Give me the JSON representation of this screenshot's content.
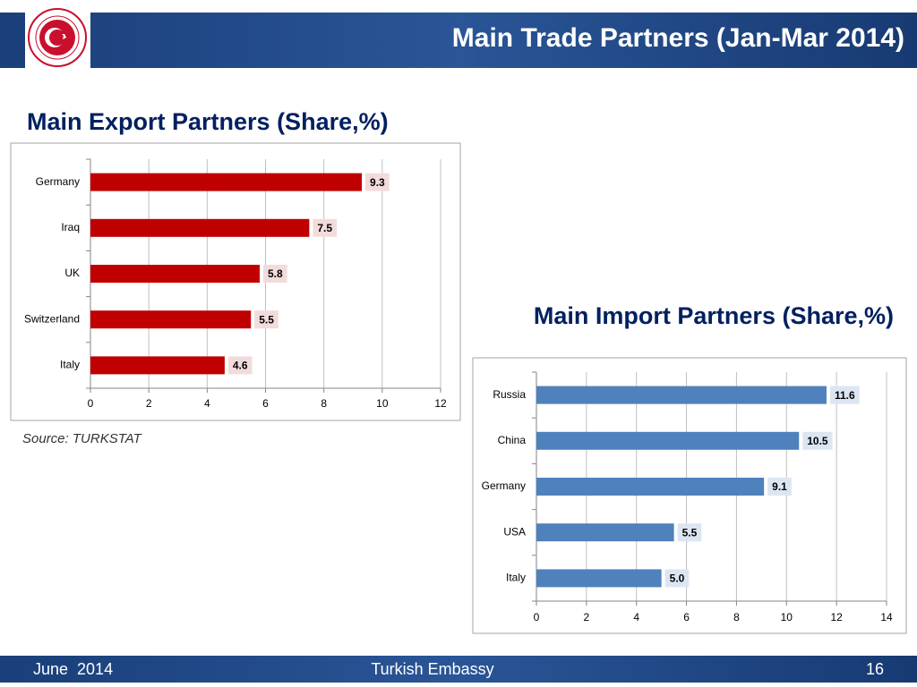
{
  "header": {
    "title": "Main Trade Partners (Jan-Mar 2014)"
  },
  "footer": {
    "date": "June  2014",
    "organization": "Turkish Embassy",
    "page": 16
  },
  "chart_data": [
    {
      "type": "bar",
      "orientation": "horizontal",
      "title": "Main Export Partners (Share,%)",
      "categories": [
        "Germany",
        "Iraq",
        "UK",
        "Switzerland",
        "Italy"
      ],
      "values": [
        9.3,
        7.5,
        5.8,
        5.5,
        4.6
      ],
      "color": "#c00000",
      "label_color": "#f2dcdb",
      "xlim": [
        0,
        12
      ],
      "xticks": [
        0,
        2,
        4,
        6,
        8,
        10,
        12
      ],
      "grid": true,
      "source": "Source: TURKSTAT"
    },
    {
      "type": "bar",
      "orientation": "horizontal",
      "title": "Main Import Partners (Share,%)",
      "categories": [
        "Russia",
        "China",
        "Germany",
        "USA",
        "Italy"
      ],
      "values": [
        11.6,
        10.5,
        9.1,
        5.5,
        5.0
      ],
      "value_labels": [
        "11.6",
        "10.5",
        "9.1",
        "5.5",
        "5.0"
      ],
      "color": "#4f81bd",
      "label_color": "#dce6f2",
      "xlim": [
        0,
        14
      ],
      "xticks": [
        0,
        2,
        4,
        6,
        8,
        10,
        12,
        14
      ],
      "grid": true
    }
  ]
}
